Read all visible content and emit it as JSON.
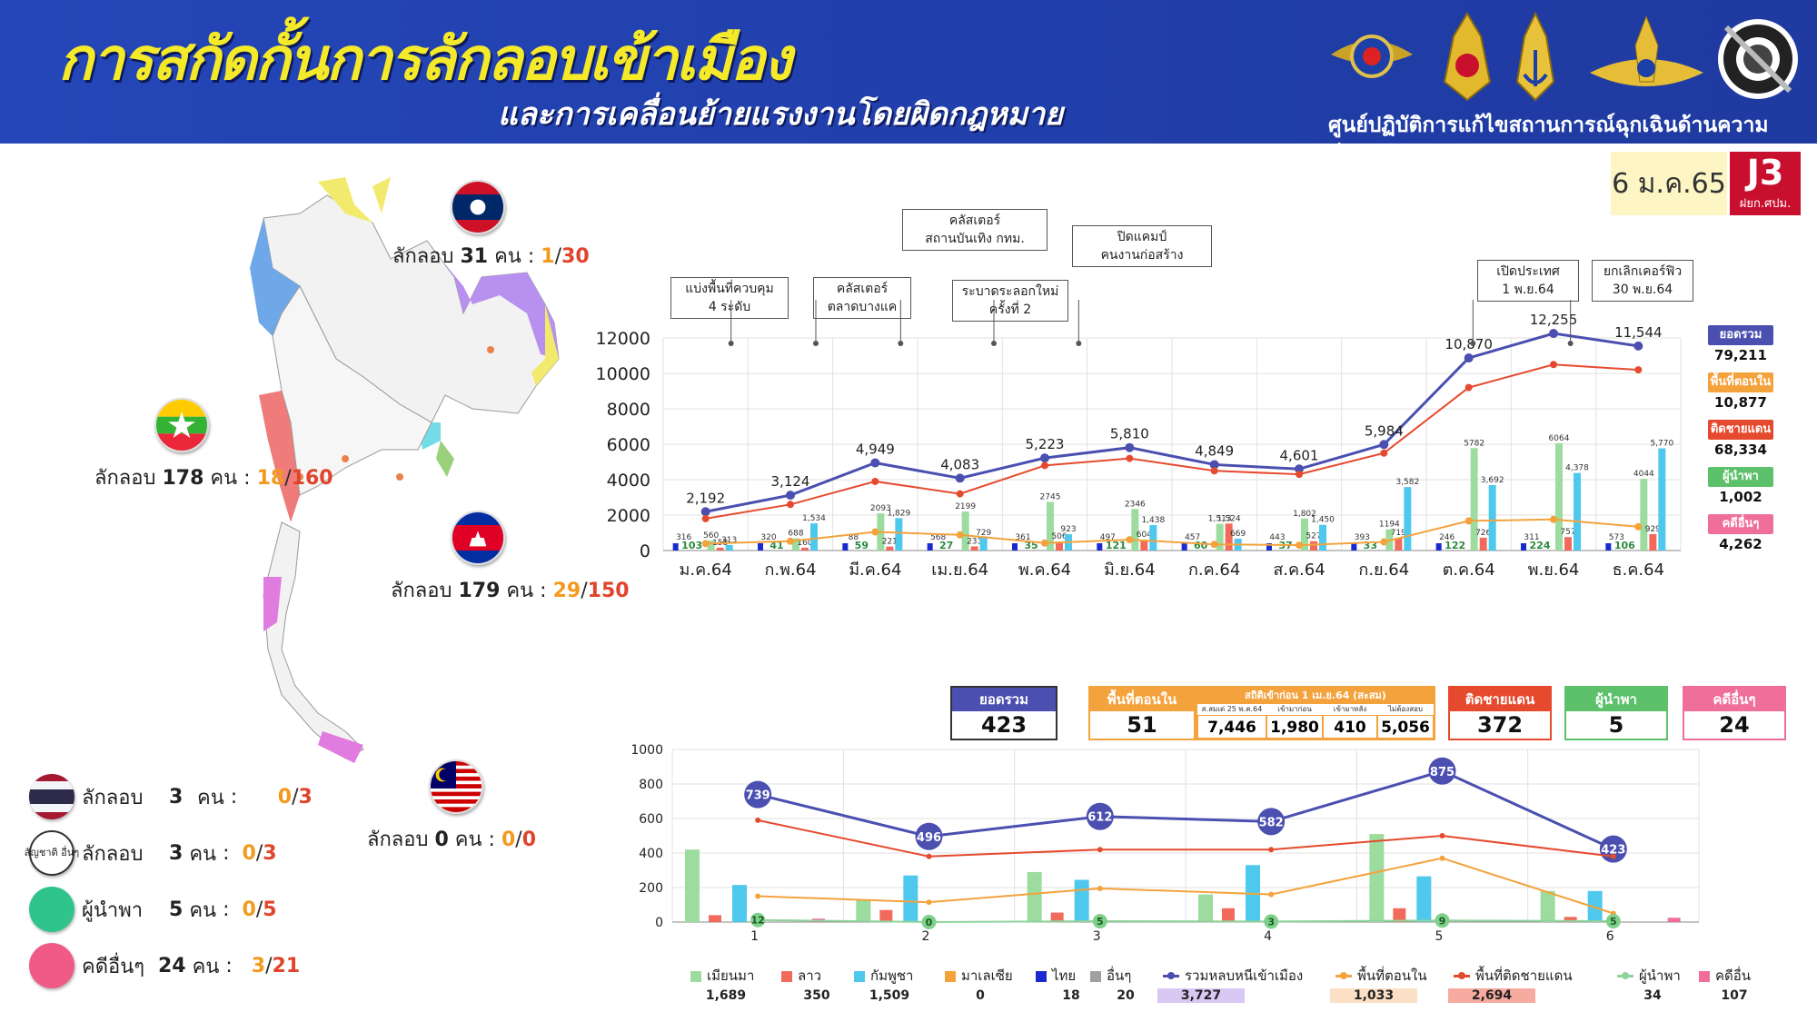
{
  "header": {
    "title": "การสกัดกั้นการลักลอบเข้าเมือง",
    "subtitle": "และการเคลื่อนย้ายแรงงานโดยผิดกฎหมาย",
    "agency": "ศูนย์ปฏิบัติการแก้ไขสถานการณ์ฉุกเฉินด้านความมั่นคง",
    "date": "6 ม.ค.65",
    "badge": "J3",
    "badge_sub": "ฝยก.ศปม."
  },
  "colors": {
    "blue": "#4a4fb0",
    "orange": "#f4a23c",
    "red": "#e64a2e",
    "green": "#8fd39a",
    "cyan": "#4fc8ee",
    "pink": "#ef6f9a",
    "myanmar": "#9ddc9f",
    "laos": "#f26a5c"
  },
  "countries": {
    "laos": {
      "prefix": "ลักลอบ",
      "count": "31",
      "unit": "คน",
      "sep": ":",
      "a": "1",
      "slash": "/",
      "b": "30"
    },
    "myanmar": {
      "prefix": "ลักลอบ",
      "count": "178",
      "unit": "คน",
      "sep": ":",
      "a": "18",
      "slash": "/",
      "b": "160"
    },
    "cambodia": {
      "prefix": "ลักลอบ",
      "count": "179",
      "unit": "คน",
      "sep": ":",
      "a": "29",
      "slash": "/",
      "b": "150"
    },
    "malaysia": {
      "prefix": "ลักลอบ",
      "count": "0",
      "unit": "คน",
      "sep": ":",
      "a": "0",
      "slash": "/",
      "b": "0"
    }
  },
  "legend_left": [
    {
      "label": "ลักลอบ",
      "count": "3",
      "unit": "คน",
      "sep": ":",
      "a": "0",
      "slash": "/",
      "b": "3",
      "icon": "thailand-flag-icon"
    },
    {
      "label": "ลักลอบ",
      "count": "3",
      "unit": "คน",
      "sep": ":",
      "a": "0",
      "slash": "/",
      "b": "3",
      "icon": "other-nationality-icon",
      "icon_text": "สัญชาติ อื่นๆ"
    },
    {
      "label": "ผู้นำพา",
      "count": "5",
      "unit": "คน",
      "sep": ":",
      "a": "0",
      "slash": "/",
      "b": "5",
      "icon": "green-circle-icon",
      "color": "#2fc48c"
    },
    {
      "label": "คดีอื่นๆ",
      "count": "24",
      "unit": "คน",
      "sep": ":",
      "a": "3",
      "slash": "/",
      "b": "21",
      "icon": "pink-circle-icon",
      "color": "#ef5b85"
    }
  ],
  "annotations": [
    {
      "text1": "แบ่งพื้นที่ควบคุม",
      "text2": "4 ระดับ"
    },
    {
      "text1": "คลัสเตอร์",
      "text2": "ตลาดบางแค"
    },
    {
      "text1": "คลัสเตอร์",
      "text2": "สถานบันเทิง กทม."
    },
    {
      "text1": "ระบาดระลอกใหม่",
      "text2": "ครั้งที่ 2"
    },
    {
      "text1": "ปิดแคมป์",
      "text2": "คนงานก่อสร้าง"
    },
    {
      "text1": "เปิดประเทศ",
      "text2": "1 พ.ย.64"
    },
    {
      "text1": "ยกเลิกเคอร์ฟิว",
      "text2": "30 พ.ย.64"
    }
  ],
  "right_summary": [
    {
      "label": "ยอดรวม",
      "value": "79,211",
      "color": "#4a4fb0"
    },
    {
      "label": "พื้นที่ตอนใน",
      "value": "10,877",
      "color": "#f4a23c"
    },
    {
      "label": "ติดชายแดน",
      "value": "68,334",
      "color": "#e64a2e"
    },
    {
      "label": "ผู้นำพา",
      "value": "1,002",
      "color": "#5cc16a"
    },
    {
      "label": "คดีอื่นๆ",
      "value": "4,262",
      "color": "#ef6f9a"
    }
  ],
  "chart_data": [
    {
      "type": "line",
      "categories": [
        "ม.ค.64",
        "ก.พ.64",
        "มี.ค.64",
        "เม.ย.64",
        "พ.ค.64",
        "มิ.ย.64",
        "ก.ค.64",
        "ส.ค.64",
        "ก.ย.64",
        "ต.ค.64",
        "พ.ย.64",
        "ธ.ค.64"
      ],
      "ylim": [
        0,
        12000
      ],
      "yticks": [
        "0",
        "2000",
        "4000",
        "6000",
        "8000",
        "10000",
        "12000"
      ],
      "series": [
        {
          "values": [
            2192,
            3124,
            4949,
            4083,
            5223,
            5810,
            4849,
            4601,
            5984,
            10870,
            12255,
            11544
          ],
          "labels": [
            "2,192",
            "3,124",
            "4,949",
            "4,083",
            "5,223",
            "5,810",
            "4,849",
            "4,601",
            "5,984",
            "10,870",
            "12,255",
            "11,544"
          ]
        },
        {
          "values": [
            1800,
            2600,
            3900,
            3200,
            4800,
            5200,
            4500,
            4300,
            5500,
            9200,
            10500,
            10200
          ]
        },
        {
          "values": [
            392,
            524,
            1049,
            883,
            423,
            610,
            349,
            301,
            484,
            1670,
            1755,
            1344
          ]
        }
      ],
      "bars": {
        "myanmar": [
          560,
          688,
          2093,
          2199,
          2745,
          2346,
          1513,
          1802,
          1194,
          5782,
          6064,
          4044
        ],
        "laos": [
          158,
          160,
          221,
          233,
          506,
          604,
          1524,
          527,
          719,
          726,
          757,
          929
        ],
        "cambodia": [
          313,
          1534,
          1829,
          729,
          923,
          1438,
          669,
          1450,
          3582,
          3692,
          4378,
          5770
        ],
        "bar_labels": {
          "myanmar": [
            "560",
            "688",
            "2093",
            "2199",
            "2745",
            "2346",
            "1,513",
            "1,802",
            "1194",
            "5782",
            "6064",
            "4044"
          ],
          "laos": [
            "158",
            "160",
            "221",
            "233",
            "506",
            "604",
            "1,524",
            "527",
            "719",
            "726",
            "757",
            "929"
          ],
          "cambodia": [
            "313",
            "1,534",
            "1,829",
            "729",
            "923",
            "1,438",
            "669",
            "1,450",
            "3,582",
            "3,692",
            "4,378",
            "5,770"
          ]
        }
      },
      "guide_labels": [
        "103",
        "41",
        "59",
        "27",
        "35",
        "121",
        "60",
        "37",
        "33",
        "122",
        "224",
        "106"
      ],
      "small_labels": [
        "316",
        "320",
        "88",
        "568",
        "361",
        "497",
        "457",
        "443",
        "393",
        "246",
        "311",
        "573"
      ]
    },
    {
      "type": "line",
      "categories": [
        "1",
        "2",
        "3",
        "4",
        "5",
        "6"
      ],
      "ylim": [
        0,
        1000
      ],
      "yticks": [
        "0",
        "200",
        "400",
        "600",
        "800",
        "1000"
      ],
      "series": [
        {
          "name": "รวมหลบหนีเข้าเมือง",
          "values": [
            739,
            496,
            612,
            582,
            875,
            423
          ],
          "labels": [
            "739",
            "496",
            "612",
            "582",
            "875",
            "423"
          ]
        },
        {
          "name": "พื้นที่ตอนใน",
          "values": [
            150,
            115,
            195,
            160,
            370,
            50
          ]
        },
        {
          "name": "พื้นที่ติดชายแดน",
          "values": [
            590,
            380,
            420,
            420,
            500,
            380
          ]
        },
        {
          "name": "ผู้นำพา",
          "values": [
            12,
            0,
            5,
            3,
            9,
            5
          ],
          "labels": [
            "12",
            "0",
            "5",
            "3",
            "9",
            "5"
          ]
        }
      ],
      "bars": {
        "myanmar": [
          420,
          130,
          290,
          160,
          510,
          180
        ],
        "laos": [
          40,
          70,
          55,
          80,
          80,
          30
        ],
        "cambodia": [
          215,
          270,
          245,
          330,
          265,
          180
        ],
        "other_cases": [
          20,
          0,
          0,
          0,
          0,
          25
        ]
      }
    }
  ],
  "summary_boxes": {
    "total": {
      "label": "ยอดรวม",
      "value": "423"
    },
    "inner": {
      "label": "พื้นที่ตอนใน",
      "value": "51"
    },
    "stats": {
      "label": "สถิติเข้าก่อน 1 เม.ย.64 (สะสม)",
      "cols": [
        "ส.สมเด่ 25 พ.ค.64",
        "เข้ามาก่อน",
        "เข้ามาหลัง",
        "ไม่ต้องสอบ"
      ],
      "vals": [
        "7,446",
        "1,980",
        "410",
        "5,056"
      ]
    },
    "border": {
      "label": "ติดชายแดน",
      "value": "372"
    },
    "guide": {
      "label": "ผู้นำพา",
      "value": "5"
    },
    "other": {
      "label": "คดีอื่นๆ",
      "value": "24"
    }
  },
  "bottom_legend": [
    {
      "label": "เมียนมา",
      "value": "1,689",
      "color": "#9ddc9f",
      "kind": "square"
    },
    {
      "label": "ลาว",
      "value": "350",
      "color": "#f26a5c",
      "kind": "square"
    },
    {
      "label": "กัมพูชา",
      "value": "1,509",
      "color": "#4fc8ee",
      "kind": "square"
    },
    {
      "label": "มาเลเซีย",
      "value": "0",
      "color": "#f4a23c",
      "kind": "square"
    },
    {
      "label": "ไทย",
      "value": "18",
      "color": "#1a2ad0",
      "kind": "square"
    },
    {
      "label": "อื่นๆ",
      "value": "20",
      "color": "#a0a0a0",
      "kind": "square"
    },
    {
      "label": "รวมหลบหนีเข้าเมือง",
      "value": "3,727",
      "color": "#4a4fb0",
      "kind": "line",
      "bg": "#d9c8f4"
    },
    {
      "label": "พื้นที่ตอนใน",
      "value": "1,033",
      "color": "#f4a23c",
      "kind": "line",
      "bg": "#fbe0c6"
    },
    {
      "label": "พื้นที่ติดชายแดน",
      "value": "2,694",
      "color": "#e64a2e",
      "kind": "line",
      "bg": "#f6aaa0"
    },
    {
      "label": "ผู้นำพา",
      "value": "34",
      "color": "#8fd39a",
      "kind": "line"
    },
    {
      "label": "คดีอื่น",
      "value": "107",
      "color": "#ef6f9a",
      "kind": "square"
    }
  ]
}
